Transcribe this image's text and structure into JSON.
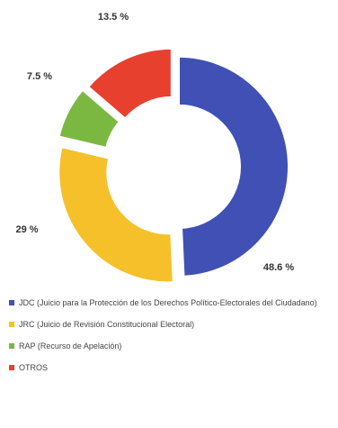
{
  "chart_data": {
    "type": "pie",
    "donut": true,
    "categories": [
      "JDC (Juicio para la Protección de los Derechos Político-Electorales del Ciudadano)",
      "JRC (Juicio de Revisión Constitucional Electoral)",
      "RAP (Recurso de Apelación)",
      "OTROS"
    ],
    "values": [
      48.6,
      29,
      7.5,
      13.5
    ],
    "data_labels": [
      "48.6 %",
      "29 %",
      "7.5 %",
      "13.5 %"
    ],
    "colors": [
      "#4050b5",
      "#f5c02a",
      "#7bb842",
      "#e8402f"
    ],
    "legend_position": "bottom",
    "title": ""
  }
}
